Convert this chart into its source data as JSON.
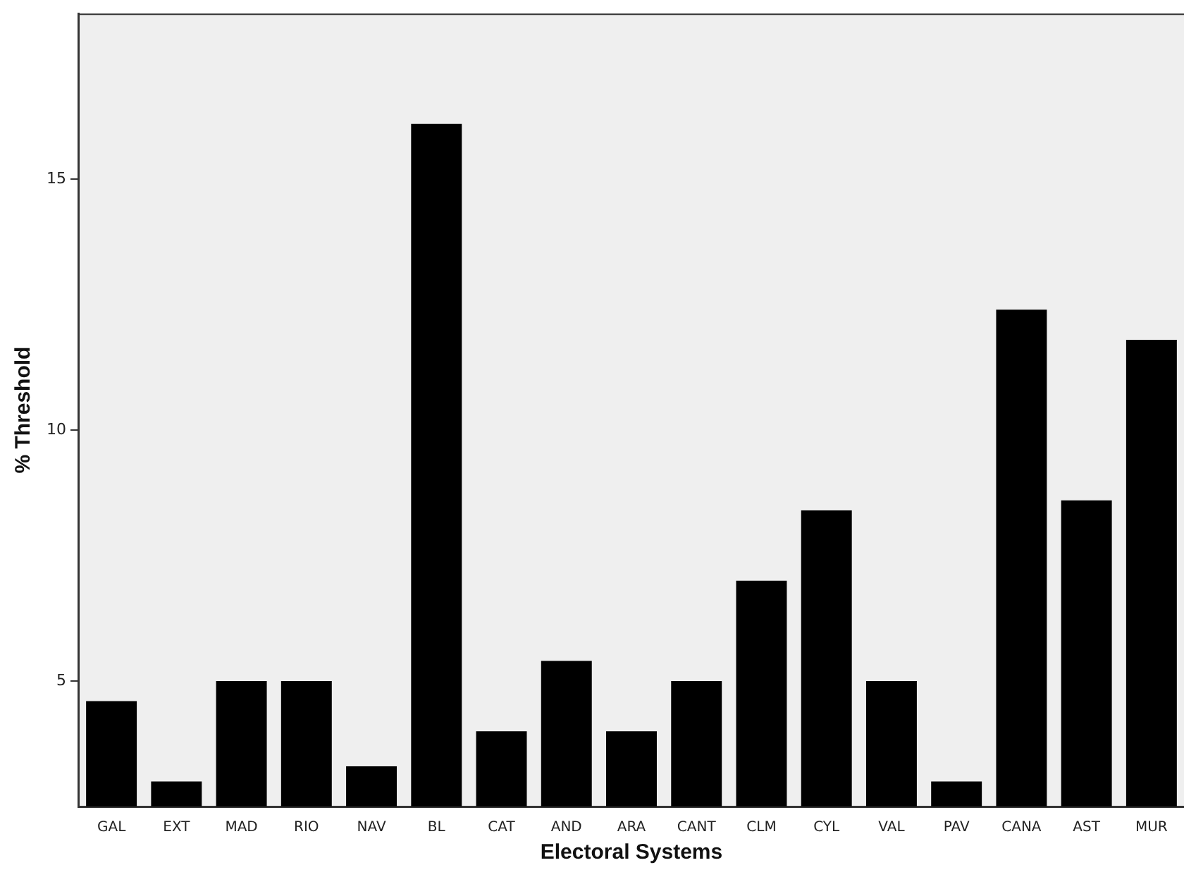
{
  "chart_data": {
    "type": "bar",
    "xlabel": "Electoral Systems",
    "ylabel": "% Threshold",
    "categories": [
      "GAL",
      "EXT",
      "MAD",
      "RIO",
      "NAV",
      "BL",
      "CAT",
      "AND",
      "ARA",
      "CANT",
      "CLM",
      "CYL",
      "VAL",
      "PAV",
      "CANA",
      "AST",
      "MUR"
    ],
    "values": [
      4.6,
      3.0,
      5.0,
      5.0,
      3.3,
      16.1,
      4.0,
      5.4,
      4.0,
      5.0,
      7.0,
      8.4,
      5.0,
      3.0,
      12.4,
      8.6,
      11.8
    ],
    "color": "#000000",
    "ylim": [
      2.5,
      18.3
    ],
    "yticks": [
      5,
      10,
      15
    ],
    "grid": false,
    "legend": false
  }
}
